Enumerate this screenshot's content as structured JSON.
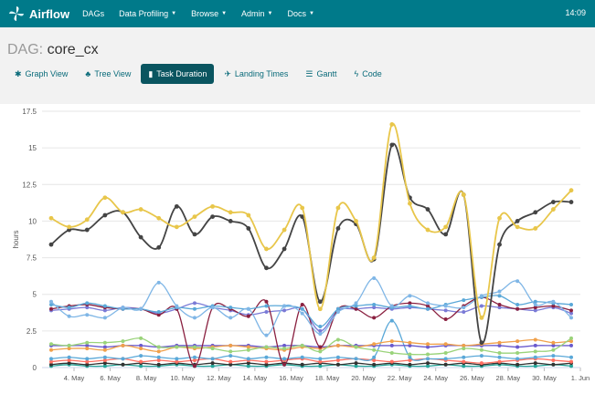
{
  "navbar": {
    "brand": "Airflow",
    "items": [
      {
        "label": "DAGs",
        "caret": false
      },
      {
        "label": "Data Profiling",
        "caret": true
      },
      {
        "label": "Browse",
        "caret": true
      },
      {
        "label": "Admin",
        "caret": true
      },
      {
        "label": "Docs",
        "caret": true
      }
    ],
    "clock": "14:09",
    "accent": "#007a8a"
  },
  "dag": {
    "prefix": "DAG:",
    "id": "core_cx"
  },
  "tabs": [
    {
      "label": "Graph View",
      "icon": "asterisk-icon",
      "active": false
    },
    {
      "label": "Tree View",
      "icon": "tree-icon",
      "active": false
    },
    {
      "label": "Task Duration",
      "icon": "bar-chart-icon",
      "active": true
    },
    {
      "label": "Landing Times",
      "icon": "plane-icon",
      "active": false
    },
    {
      "label": "Gantt",
      "icon": "align-left-icon",
      "active": false
    },
    {
      "label": "Code",
      "icon": "flash-icon",
      "active": false
    }
  ],
  "chart_data": {
    "type": "line",
    "ylabel": "hours",
    "ylim": [
      0,
      17.5
    ],
    "yticks": [
      "0",
      "2.5",
      "5",
      "7.5",
      "10",
      "12.5",
      "15",
      "17.5"
    ],
    "xticks": [
      "4. May",
      "6. May",
      "8. May",
      "10. May",
      "12. May",
      "14. May",
      "16. May",
      "18. May",
      "20. May",
      "22. May",
      "24. May",
      "26. May",
      "28. May",
      "30. May",
      "1. Jun"
    ],
    "grid": true,
    "series": [
      {
        "color": "#e8c64a",
        "values": [
          10.2,
          9.6,
          10.1,
          11.6,
          10.6,
          10.8,
          10.2,
          9.6,
          10.3,
          11.0,
          10.6,
          10.4,
          8.1,
          9.4,
          10.9,
          4.0,
          10.9,
          10.0,
          7.5,
          16.6,
          11.2,
          9.4,
          9.6,
          11.8,
          3.4,
          10.2,
          9.6,
          9.5,
          10.8,
          12.1
        ]
      },
      {
        "color": "#444444",
        "values": [
          8.4,
          9.4,
          9.4,
          10.4,
          10.6,
          8.9,
          8.2,
          11.0,
          9.1,
          10.3,
          10.0,
          9.5,
          6.8,
          8.1,
          10.3,
          4.5,
          9.5,
          9.8,
          7.4,
          15.2,
          11.6,
          10.8,
          9.1,
          11.8,
          1.7,
          8.4,
          10.0,
          10.6,
          11.3,
          11.3
        ]
      },
      {
        "color": "#7fb6e6",
        "values": [
          4.5,
          3.5,
          3.6,
          3.4,
          4.1,
          4.0,
          5.8,
          4.2,
          3.4,
          4.1,
          3.4,
          4.0,
          2.2,
          4.2,
          3.7,
          2.3,
          3.8,
          4.4,
          6.1,
          4.2,
          4.9,
          4.4,
          4.2,
          4.1,
          4.9,
          5.2,
          5.9,
          4.3,
          4.5,
          3.4
        ]
      },
      {
        "color": "#5aa8d8",
        "values": [
          4.3,
          4.1,
          4.4,
          4.2,
          4.0,
          4.0,
          3.8,
          4.1,
          4.0,
          4.2,
          4.1,
          4.0,
          4.2,
          4.2,
          4.0,
          2.8,
          4.0,
          4.2,
          4.3,
          4.1,
          4.2,
          4.0,
          4.3,
          4.6,
          4.8,
          4.9,
          4.3,
          4.5,
          4.4,
          4.3
        ]
      },
      {
        "color": "#8a2040",
        "values": [
          4.0,
          4.2,
          4.3,
          4.1,
          4.0,
          4.0,
          3.6,
          4.0,
          0.1,
          4.1,
          4.0,
          3.5,
          4.5,
          0.2,
          4.3,
          1.4,
          4.0,
          4.0,
          3.4,
          4.2,
          4.4,
          4.2,
          3.3,
          4.2,
          4.8,
          4.3,
          4.0,
          4.1,
          4.2,
          3.9
        ]
      },
      {
        "color": "#7a7ad6",
        "values": [
          3.9,
          4.0,
          4.1,
          3.9,
          4.1,
          4.0,
          3.7,
          4.0,
          4.4,
          4.1,
          3.9,
          3.6,
          3.8,
          3.9,
          4.0,
          2.5,
          3.9,
          4.0,
          4.1,
          4.0,
          4.1,
          4.0,
          3.9,
          3.8,
          4.2,
          4.1,
          4.0,
          3.9,
          4.1,
          3.7
        ]
      },
      {
        "color": "#9ad37a",
        "values": [
          1.6,
          1.5,
          1.7,
          1.7,
          1.8,
          2.0,
          1.4,
          1.4,
          1.4,
          1.3,
          1.1,
          1.2,
          1.4,
          1.3,
          1.5,
          1.1,
          1.9,
          1.4,
          1.2,
          1.0,
          0.9,
          0.9,
          1.0,
          1.3,
          1.2,
          1.0,
          1.0,
          1.1,
          1.2,
          2.0
        ]
      },
      {
        "color": "#f0a04a",
        "values": [
          1.2,
          1.3,
          1.3,
          1.2,
          1.5,
          1.3,
          1.1,
          1.4,
          1.3,
          1.4,
          1.5,
          1.4,
          1.3,
          1.2,
          1.4,
          1.3,
          1.5,
          1.4,
          1.6,
          1.8,
          1.7,
          1.6,
          1.6,
          1.5,
          1.6,
          1.7,
          1.8,
          1.9,
          1.7,
          1.8
        ]
      },
      {
        "color": "#6a5acd",
        "values": [
          1.5,
          1.5,
          1.5,
          1.4,
          1.5,
          1.5,
          1.4,
          1.5,
          1.5,
          1.5,
          1.5,
          1.5,
          1.4,
          1.5,
          1.5,
          1.4,
          1.5,
          1.5,
          1.5,
          1.5,
          1.5,
          1.4,
          1.5,
          1.5,
          1.5,
          1.5,
          1.4,
          1.5,
          1.5,
          1.5
        ]
      },
      {
        "color": "#5aa8d8",
        "values": [
          0.6,
          0.7,
          0.6,
          0.7,
          0.6,
          0.8,
          0.7,
          0.6,
          0.7,
          0.6,
          0.8,
          0.6,
          0.7,
          0.6,
          0.7,
          0.6,
          0.7,
          0.6,
          0.7,
          3.2,
          0.7,
          0.6,
          0.6,
          0.7,
          0.8,
          0.7,
          0.6,
          0.7,
          0.8,
          0.7
        ]
      },
      {
        "color": "#ff6f61",
        "values": [
          0.4,
          0.5,
          0.4,
          0.5,
          0.6,
          0.4,
          0.5,
          0.4,
          0.5,
          0.6,
          0.4,
          0.5,
          0.4,
          0.5,
          0.6,
          0.4,
          0.5,
          0.6,
          0.5,
          0.4,
          0.5,
          0.6,
          0.5,
          0.4,
          0.3,
          0.4,
          0.5,
          0.6,
          0.5,
          0.4
        ]
      },
      {
        "color": "#333333",
        "values": [
          0.2,
          0.3,
          0.2,
          0.3,
          0.2,
          0.3,
          0.2,
          0.3,
          0.2,
          0.3,
          0.2,
          0.3,
          0.2,
          0.3,
          0.2,
          0.3,
          0.2,
          0.3,
          0.2,
          0.3,
          0.2,
          0.3,
          0.2,
          0.3,
          0.2,
          0.3,
          0.2,
          0.3,
          0.2,
          0.3
        ]
      },
      {
        "color": "#26a69a",
        "values": [
          0.1,
          0.2,
          0.1,
          0.1,
          0.2,
          0.1,
          0.1,
          0.2,
          0.1,
          0.1,
          0.2,
          0.1,
          0.1,
          0.2,
          0.1,
          0.1,
          0.2,
          0.1,
          0.1,
          0.2,
          0.1,
          0.1,
          0.2,
          0.1,
          0.1,
          0.2,
          0.1,
          0.1,
          0.2,
          0.1
        ]
      }
    ]
  }
}
